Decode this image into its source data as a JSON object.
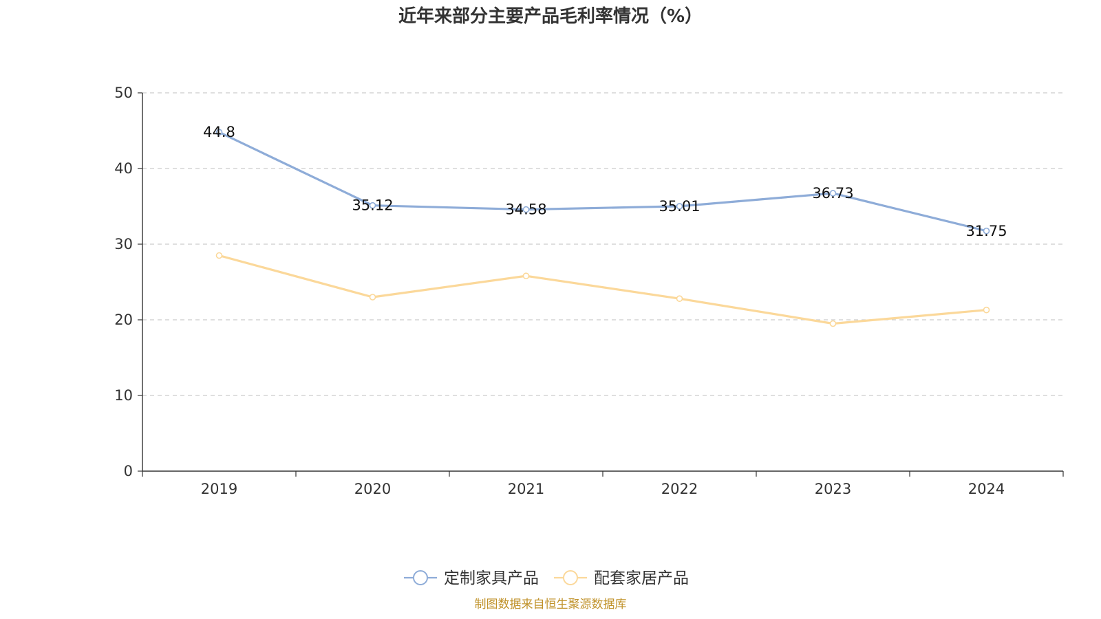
{
  "chart_data": {
    "type": "line",
    "title": "近年来部分主要产品毛利率情况（%）",
    "categories": [
      "2019",
      "2020",
      "2021",
      "2022",
      "2023",
      "2024"
    ],
    "ylim": [
      0,
      50
    ],
    "yticks": [
      0,
      10,
      20,
      30,
      40,
      50
    ],
    "grid": true,
    "legend_position": "bottom",
    "series": [
      {
        "name": "定制家具产品",
        "values": [
          44.8,
          35.12,
          34.58,
          35.01,
          36.73,
          31.75
        ],
        "labels": [
          "44.8",
          "35.12",
          "34.58",
          "35.01",
          "36.73",
          "31.75"
        ],
        "show_labels": true,
        "color": "#8eacd8"
      },
      {
        "name": "配套家居产品",
        "values": [
          28.5,
          23.0,
          25.8,
          22.8,
          19.5,
          21.3
        ],
        "show_labels": false,
        "color": "#fbd89a"
      }
    ],
    "source": "制图数据来自恒生聚源数据库"
  },
  "colors": {
    "axis": "#333333",
    "grid": "#cccccc",
    "source": "#c0922a"
  }
}
